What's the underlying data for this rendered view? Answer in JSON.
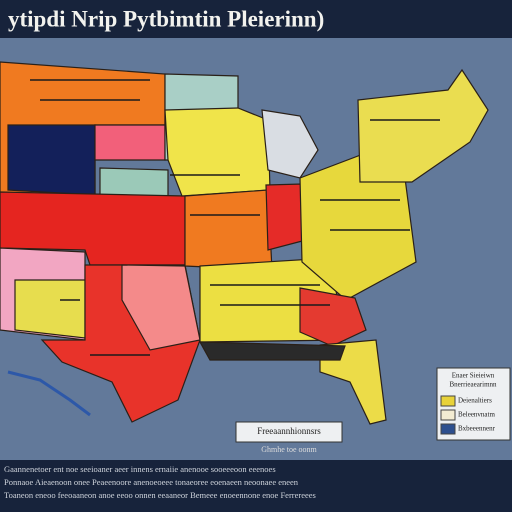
{
  "header": {
    "title": "ytipdi Nrip Pytbimtin  Pleierinn)"
  },
  "legend": {
    "heading": [
      "Enaer Sieieiwn",
      "Bnerrieaearimnn"
    ],
    "items": [
      {
        "label": "Deienaltiers",
        "color": "#e8d23a"
      },
      {
        "label": "Beleenvnatm",
        "color": "#f3ecd2"
      },
      {
        "label": "Bxbeeennenr",
        "color": "#2d4f8e"
      }
    ]
  },
  "caption": {
    "title": "Freeaannhionnsrs",
    "subtitle": "Ghmhe toe oonm"
  },
  "footer": {
    "lines": [
      "Gaannenetoer ent noe seeioaner aeer innens ernaiie anenooe sooeeeoon eeenoes",
      "Ponnaoe Aieaenoon onee Peaeenoore anenoeoeee tonaeoree eoenaeen neoonaee eneen",
      "Toaneon eneoo feeoaaneon anoe eeoo onnen eeaaneor Bemeee enoeennone enoe Ferrereees"
    ]
  }
}
